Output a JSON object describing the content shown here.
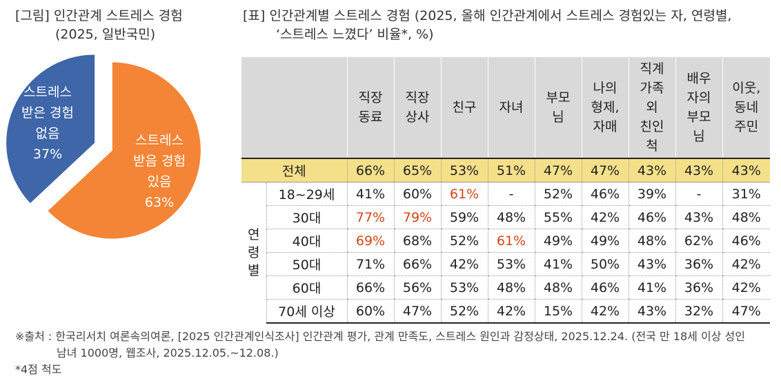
{
  "left_title": {
    "line1": "[그림] 인간관계 스트레스 경험",
    "line2": "(2025, 일반국민)"
  },
  "right_title": {
    "line1": "[표] 인간관계별 스트레스 경험 (2025, 올해 인간관계에서 스트레스 경험있는 자, 연령별,",
    "line2": "‘스트레스 느꼈다’ 비율*, %)"
  },
  "chart_data": [
    {
      "type": "pie",
      "slices": [
        {
          "label": [
            "스트레스",
            "받음 경험",
            "있음"
          ],
          "value_label": "63%",
          "value": 63,
          "color": "#f58536"
        },
        {
          "label": [
            "스트레스",
            "받은 경험",
            "없음"
          ],
          "value_label": "37%",
          "value": 37,
          "color": "#3e66a8"
        }
      ]
    },
    {
      "type": "table",
      "columns": [
        "직장 동료",
        "직장 상사",
        "친구",
        "자녀",
        "부모님",
        "나의 형제, 자매",
        "직계 가족 외 친인척",
        "배우자의 부모님",
        "이웃, 동네 주민"
      ],
      "total_label": "전체",
      "total": [
        "66%",
        "65%",
        "53%",
        "51%",
        "47%",
        "47%",
        "43%",
        "43%",
        "43%"
      ],
      "group_label": "연령별",
      "rows": [
        {
          "label": "18~29세",
          "values": [
            "41%",
            "60%",
            "61%",
            "-",
            "52%",
            "46%",
            "39%",
            "-",
            "31%"
          ]
        },
        {
          "label": "30대",
          "values": [
            "77%",
            "79%",
            "59%",
            "48%",
            "55%",
            "42%",
            "46%",
            "43%",
            "48%"
          ]
        },
        {
          "label": "40대",
          "values": [
            "69%",
            "68%",
            "52%",
            "61%",
            "49%",
            "49%",
            "48%",
            "62%",
            "46%"
          ]
        },
        {
          "label": "50대",
          "values": [
            "71%",
            "66%",
            "42%",
            "53%",
            "41%",
            "50%",
            "43%",
            "36%",
            "42%"
          ]
        },
        {
          "label": "60대",
          "values": [
            "66%",
            "56%",
            "53%",
            "48%",
            "48%",
            "46%",
            "41%",
            "36%",
            "42%"
          ]
        },
        {
          "label": "70세 이상",
          "values": [
            "60%",
            "47%",
            "52%",
            "42%",
            "15%",
            "42%",
            "43%",
            "32%",
            "47%"
          ]
        }
      ],
      "highlights": [
        {
          "row": "18~29세",
          "column": "친구"
        },
        {
          "row": "30대",
          "column": "직장 동료"
        },
        {
          "row": "30대",
          "column": "직장 상사"
        },
        {
          "row": "40대",
          "column": "직장 동료"
        },
        {
          "row": "40대",
          "column": "자녀"
        }
      ],
      "highlight_color": "#d0451b",
      "total_row_color": "#f5e08a",
      "header_color": "#d9d9d9"
    }
  ],
  "footnote": {
    "line1": "※출처 : 한국리서치 여론속의여론, [2025 인간관계인식조사] 인간관계 평가, 관계 만족도, 스트레스 원인과 감정상태, 2025.12.24. (전국 만 18세 이상 성인",
    "line2": "남녀 1000명, 웹조사, 2025.12.05.~12.08.)",
    "line3": "*4점 척도"
  }
}
